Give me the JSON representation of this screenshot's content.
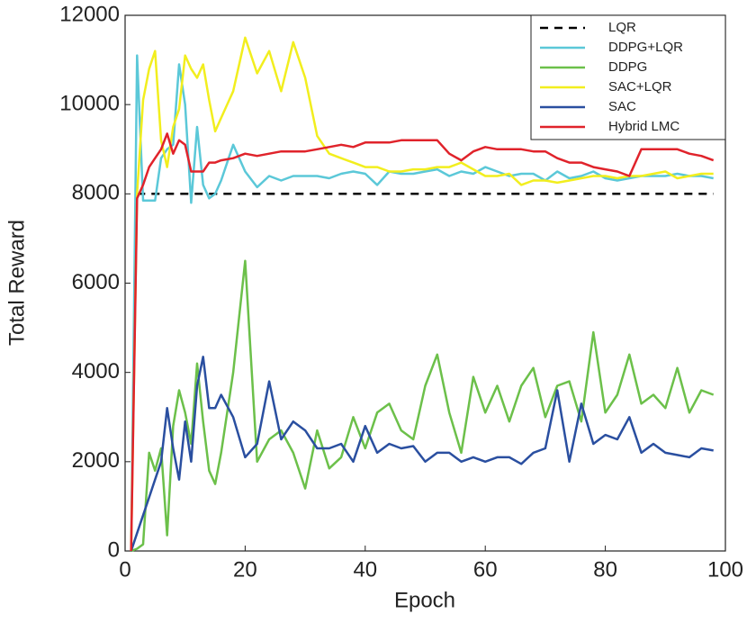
{
  "chart_data": {
    "type": "line",
    "x_label": "Epoch",
    "y_label": "Total Reward",
    "x": [
      1,
      2,
      3,
      4,
      5,
      6,
      7,
      8,
      9,
      10,
      11,
      12,
      13,
      14,
      15,
      16,
      18,
      20,
      22,
      24,
      26,
      28,
      30,
      32,
      34,
      36,
      38,
      40,
      42,
      44,
      46,
      48,
      50,
      52,
      54,
      56,
      58,
      60,
      62,
      64,
      66,
      68,
      70,
      72,
      74,
      76,
      78,
      80,
      82,
      84,
      86,
      88,
      90,
      92,
      94,
      96,
      98
    ],
    "xlim": [
      0,
      100
    ],
    "xticks": [
      0,
      20,
      40,
      60,
      80,
      100
    ],
    "ylim": [
      0,
      12000
    ],
    "yticks": [
      0,
      2000,
      4000,
      6000,
      8000,
      10000,
      12000
    ],
    "legend": "upper right",
    "series": [
      {
        "name": "LQR",
        "color": "#000000",
        "dash": "dashed",
        "values": [
          null,
          8000,
          8000,
          8000,
          8000,
          8000,
          8000,
          8000,
          8000,
          8000,
          8000,
          8000,
          8000,
          8000,
          8000,
          8000,
          8000,
          8000,
          8000,
          8000,
          8000,
          8000,
          8000,
          8000,
          8000,
          8000,
          8000,
          8000,
          8000,
          8000,
          8000,
          8000,
          8000,
          8000,
          8000,
          8000,
          8000,
          8000,
          8000,
          8000,
          8000,
          8000,
          8000,
          8000,
          8000,
          8000,
          8000,
          8000,
          8000,
          8000,
          8000,
          8000,
          8000,
          8000,
          8000,
          8000,
          8000
        ]
      },
      {
        "name": "DDPG+LQR",
        "color": "#5bc8d8",
        "values": [
          0,
          11100,
          7850,
          7850,
          7850,
          8800,
          9000,
          9100,
          10900,
          10000,
          7800,
          9500,
          8200,
          7900,
          8000,
          8300,
          9100,
          8500,
          8150,
          8400,
          8300,
          8400,
          8400,
          8400,
          8350,
          8450,
          8500,
          8450,
          8200,
          8500,
          8450,
          8450,
          8500,
          8550,
          8400,
          8500,
          8450,
          8600,
          8500,
          8400,
          8450,
          8450,
          8300,
          8500,
          8350,
          8400,
          8500,
          8350,
          8300,
          8350,
          8400,
          8400,
          8400,
          8450,
          8400,
          8400,
          8350
        ]
      },
      {
        "name": "DDPG",
        "color": "#6cc04a",
        "values": [
          0,
          50,
          150,
          2200,
          1800,
          2300,
          350,
          2800,
          3600,
          3100,
          2400,
          4200,
          2900,
          1800,
          1500,
          2200,
          4000,
          6500,
          2000,
          2500,
          2700,
          2200,
          1400,
          2700,
          1850,
          2100,
          3000,
          2300,
          3100,
          3300,
          2700,
          2500,
          3700,
          4400,
          3100,
          2200,
          3900,
          3100,
          3700,
          2900,
          3700,
          4100,
          3000,
          3700,
          3800,
          2900,
          4900,
          3100,
          3500,
          4400,
          3300,
          3500,
          3200,
          4100,
          3100,
          3600,
          3500
        ]
      },
      {
        "name": "SAC+LQR",
        "color": "#f2ee1e",
        "values": [
          0,
          8000,
          10100,
          10800,
          11200,
          9200,
          8600,
          9500,
          9900,
          11100,
          10800,
          10600,
          10900,
          10100,
          9400,
          9700,
          10300,
          11500,
          10700,
          11200,
          10300,
          11400,
          10600,
          9300,
          8900,
          8800,
          8700,
          8600,
          8600,
          8500,
          8500,
          8550,
          8550,
          8600,
          8600,
          8700,
          8550,
          8400,
          8400,
          8450,
          8200,
          8300,
          8300,
          8250,
          8300,
          8350,
          8400,
          8400,
          8350,
          8400,
          8400,
          8450,
          8500,
          8350,
          8400,
          8450,
          8450
        ]
      },
      {
        "name": "SAC",
        "color": "#2a4fa0",
        "values": [
          0,
          400,
          800,
          1200,
          1600,
          2000,
          3200,
          2300,
          1600,
          2900,
          2000,
          3700,
          4350,
          3200,
          3200,
          3500,
          3000,
          2100,
          2400,
          3800,
          2500,
          2900,
          2700,
          2300,
          2300,
          2400,
          2000,
          2800,
          2200,
          2400,
          2300,
          2350,
          2000,
          2200,
          2200,
          2000,
          2100,
          2000,
          2100,
          2100,
          1950,
          2200,
          2300,
          3600,
          2000,
          3300,
          2400,
          2600,
          2500,
          3000,
          2200,
          2400,
          2200,
          2150,
          2100,
          2300,
          2250
        ]
      },
      {
        "name": "Hybrid LMC",
        "color": "#e0232b",
        "values": [
          0,
          7900,
          8200,
          8600,
          8800,
          9000,
          9350,
          8900,
          9200,
          9100,
          8500,
          8500,
          8500,
          8700,
          8700,
          8750,
          8800,
          8900,
          8850,
          8900,
          8950,
          8950,
          8950,
          9000,
          9050,
          9100,
          9050,
          9150,
          9150,
          9150,
          9200,
          9200,
          9200,
          9200,
          8900,
          8750,
          8950,
          9050,
          9000,
          9000,
          9000,
          8950,
          8950,
          8800,
          8700,
          8700,
          8600,
          8550,
          8500,
          8400,
          9000,
          9000,
          9000,
          9000,
          8900,
          8850,
          8750
        ]
      }
    ]
  }
}
